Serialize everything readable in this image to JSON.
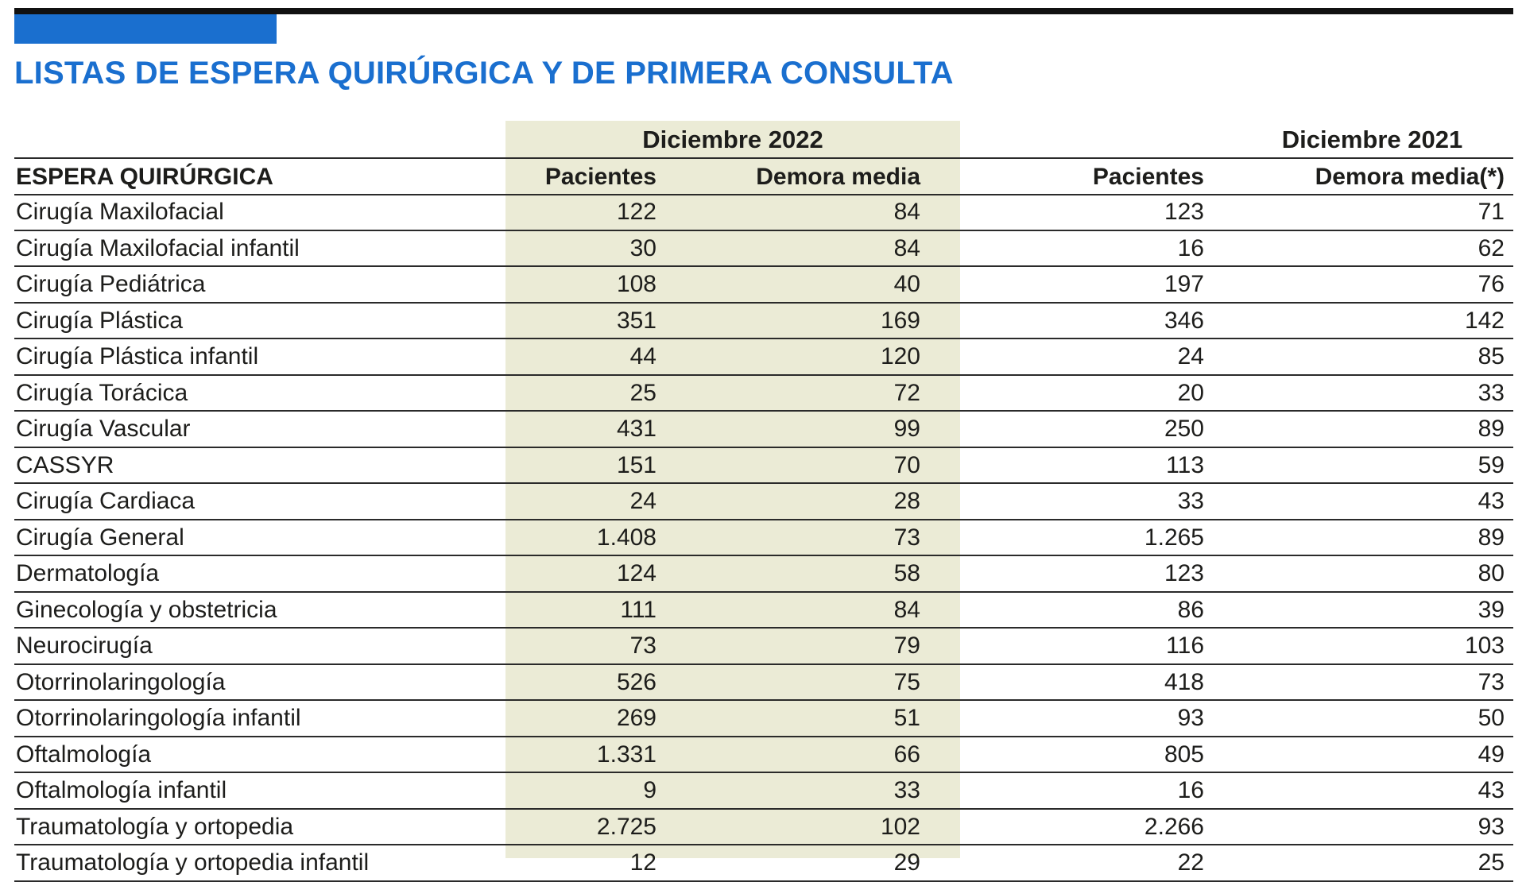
{
  "title": "LISTAS DE ESPERA QUIRÚRGICA Y DE PRIMERA CONSULTA",
  "colors": {
    "accent": "#1a6fcf",
    "highlight": "#ebebd6",
    "text": "#1d1d1b"
  },
  "chart_data": {
    "type": "table",
    "periods": [
      "Diciembre 2022",
      "Diciembre 2021"
    ],
    "section": "ESPERA QUIRÚRGICA",
    "columns": [
      "Pacientes",
      "Demora media",
      "Pacientes",
      "Demora media(*)"
    ],
    "rows": [
      [
        "Cirugía Maxilofacial",
        "122",
        "84",
        "123",
        "71"
      ],
      [
        "Cirugía Maxilofacial infantil",
        "30",
        "84",
        "16",
        "62"
      ],
      [
        "Cirugía Pediátrica",
        "108",
        "40",
        "197",
        "76"
      ],
      [
        "Cirugía Plástica",
        "351",
        "169",
        "346",
        "142"
      ],
      [
        "Cirugía Plástica infantil",
        "44",
        "120",
        "24",
        "85"
      ],
      [
        "Cirugía Torácica",
        "25",
        "72",
        "20",
        "33"
      ],
      [
        "Cirugía Vascular",
        "431",
        "99",
        "250",
        "89"
      ],
      [
        "CASSYR",
        "151",
        "70",
        "113",
        "59"
      ],
      [
        "Cirugía Cardiaca",
        "24",
        "28",
        "33",
        "43"
      ],
      [
        "Cirugía General",
        "1.408",
        "73",
        "1.265",
        "89"
      ],
      [
        "Dermatología",
        "124",
        "58",
        "123",
        "80"
      ],
      [
        "Ginecología y obstetricia",
        "111",
        "84",
        "86",
        "39"
      ],
      [
        "Neurocirugía",
        "73",
        "79",
        "116",
        "103"
      ],
      [
        "Otorrinolaringología",
        "526",
        "75",
        "418",
        "73"
      ],
      [
        "Otorrinolaringología infantil",
        "269",
        "51",
        "93",
        "50"
      ],
      [
        "Oftalmología",
        "1.331",
        "66",
        "805",
        "49"
      ],
      [
        "Oftalmología infantil",
        "9",
        "33",
        "16",
        "43"
      ],
      [
        "Traumatología y ortopedia",
        "2.725",
        "102",
        "2.266",
        "93"
      ],
      [
        "Traumatología y ortopedia infantil",
        "12",
        "29",
        "22",
        "25"
      ]
    ]
  }
}
